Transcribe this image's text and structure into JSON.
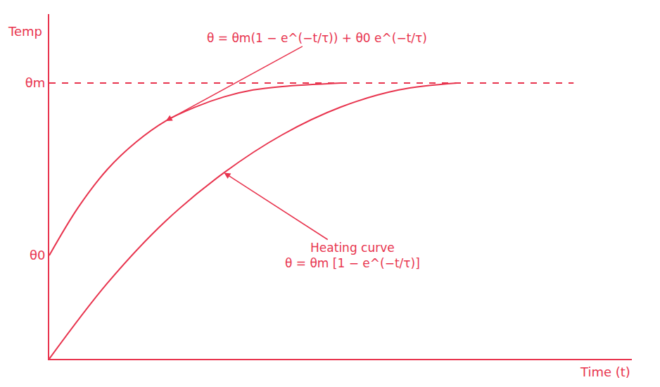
{
  "chart_data": {
    "type": "line",
    "xlabel": "Time (t)",
    "ylabel": "Temp",
    "xlim": [
      0,
      10
    ],
    "ylim": [
      0,
      10
    ],
    "xticks": [],
    "yticks": [
      {
        "value": 8,
        "label": "θm"
      },
      {
        "value": 3,
        "label": "θ0"
      }
    ],
    "tick_labels": "y",
    "grid": false,
    "color": "#e8344e",
    "series": [
      {
        "x": [
          0,
          0.5,
          1,
          1.5,
          2,
          2.5,
          3,
          3.5,
          4,
          5
        ],
        "values": [
          3,
          4.4,
          5.5,
          6.3,
          6.9,
          7.3,
          7.6,
          7.8,
          7.9,
          8.0
        ],
        "line_style": "solid",
        "label": [
          "θ = θm(1 − e^(−t/τ)) + θ0 e^(−t/τ)"
        ]
      },
      {
        "x": [
          0,
          1,
          2,
          3,
          4,
          5,
          6,
          7
        ],
        "values": [
          0,
          2.2,
          4.0,
          5.4,
          6.5,
          7.3,
          7.8,
          8.0
        ],
        "line_style": "solid",
        "label": [
          "Heating curve",
          "θ = θm [1 − e^(−t/τ)]"
        ]
      },
      {
        "x": [
          0,
          9
        ],
        "values": [
          8,
          8
        ],
        "line_style": "dashed"
      }
    ]
  }
}
